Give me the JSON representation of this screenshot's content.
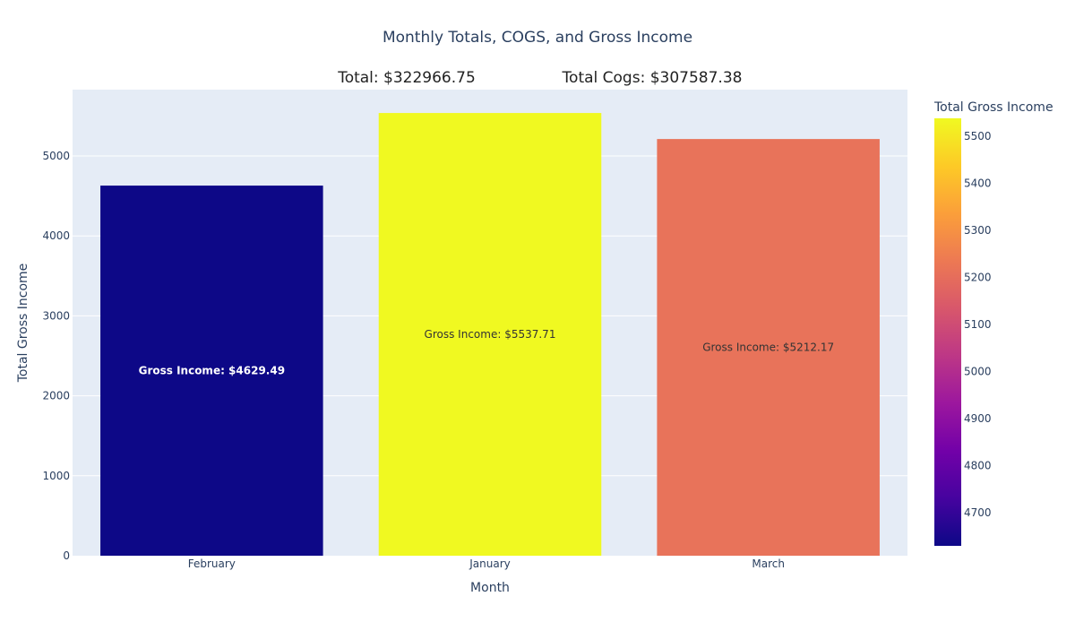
{
  "chart_data": {
    "type": "bar",
    "title": "Monthly Totals, COGS, and Gross Income",
    "annotations": [
      "Total: $322966.75",
      "Total Cogs: $307587.38"
    ],
    "categories": [
      "February",
      "January",
      "March"
    ],
    "values": [
      4629.49,
      5537.71,
      5212.17
    ],
    "bar_labels": [
      "Gross Income: $4629.49",
      "Gross Income: $5537.71",
      "Gross Income: $5212.17"
    ],
    "bar_colors": [
      "#0d0887",
      "#f0f921",
      "#e8735a"
    ],
    "bar_label_colors": [
      "#ffffff",
      "#333333",
      "#333333"
    ],
    "xlabel": "Month",
    "ylabel": "Total Gross Income",
    "ylim": [
      0,
      5830
    ],
    "y_ticks": [
      0,
      1000,
      2000,
      3000,
      4000,
      5000
    ],
    "grid": true,
    "plot_background": "#e5ecf6",
    "colorbar": {
      "title": "Total Gross Income",
      "range": [
        4629.49,
        5537.71
      ],
      "ticks": [
        4700,
        4800,
        4900,
        5000,
        5100,
        5200,
        5300,
        5400,
        5500
      ],
      "colorscale": [
        "#0d0887",
        "#46039f",
        "#7201a8",
        "#9c179e",
        "#bd3786",
        "#d8576b",
        "#ed7953",
        "#fb9f3a",
        "#fdca26",
        "#f0f921"
      ]
    }
  }
}
